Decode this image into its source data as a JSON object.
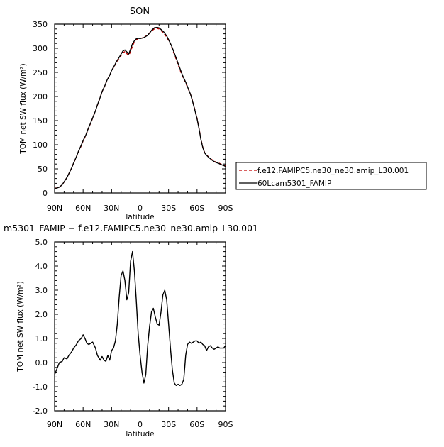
{
  "chart_data": [
    {
      "type": "line",
      "title": "SON",
      "xlabel": "latitude",
      "ylabel": "TOM net SW flux (W/m²)",
      "xlim": [
        90,
        -90
      ],
      "ylim": [
        0,
        350
      ],
      "xticks": [
        90,
        60,
        30,
        0,
        -30,
        -60,
        -90
      ],
      "xtick_labels": [
        "90N",
        "60N",
        "30N",
        "0",
        "30S",
        "60S",
        "90S"
      ],
      "yticks": [
        0,
        50,
        100,
        150,
        200,
        250,
        300,
        350
      ],
      "ytick_labels": [
        "0",
        "50",
        "100",
        "150",
        "200",
        "250",
        "300",
        "350"
      ],
      "legend_position": "right",
      "series": [
        {
          "name": "f.e12.FAMIPC5.ne30_ne30.amip_L30.001",
          "color": "#c00000",
          "dash": "dashed",
          "x": [
            90,
            88,
            85,
            82,
            80,
            77,
            75,
            72,
            70,
            67,
            65,
            62,
            60,
            57,
            55,
            52,
            50,
            47,
            45,
            42,
            40,
            37,
            35,
            32,
            30,
            27,
            25,
            22,
            20,
            18,
            16,
            14,
            12,
            10,
            8,
            6,
            4,
            2,
            0,
            -3,
            -5,
            -8,
            -10,
            -12,
            -15,
            -18,
            -20,
            -23,
            -25,
            -28,
            -30,
            -33,
            -35,
            -38,
            -40,
            -43,
            -45,
            -48,
            -50,
            -53,
            -55,
            -57,
            -60,
            -62,
            -64,
            -66,
            -68,
            -70,
            -72,
            -75,
            -78,
            -80,
            -83,
            -85,
            -88,
            -90
          ],
          "values": [
            10,
            10.5,
            12,
            17,
            23,
            32,
            40,
            52,
            62,
            75,
            85,
            98,
            108,
            120,
            131,
            145,
            155,
            170,
            182,
            198,
            210,
            223,
            233,
            244,
            253,
            263,
            270,
            278,
            285,
            291,
            293,
            289,
            285,
            293,
            305,
            313,
            318,
            319.5,
            320,
            322,
            324,
            327.5,
            332,
            336,
            340,
            341,
            340,
            335,
            331,
            323,
            316,
            303,
            293,
            277,
            266,
            250,
            240,
            228,
            219,
            205,
            193,
            178,
            155,
            135,
            112,
            95,
            84,
            79,
            75,
            70,
            66,
            64,
            62,
            60,
            58,
            56
          ]
        },
        {
          "name": "60Lcam5301_FAMIP",
          "color": "#000000",
          "dash": "solid",
          "x": [
            90,
            88,
            85,
            82,
            80,
            77,
            75,
            72,
            70,
            67,
            65,
            62,
            60,
            57,
            55,
            52,
            50,
            47,
            45,
            42,
            40,
            37,
            35,
            32,
            30,
            27,
            25,
            22,
            20,
            18,
            16,
            14,
            12,
            10,
            8,
            6,
            4,
            2,
            0,
            -3,
            -5,
            -8,
            -10,
            -12,
            -15,
            -18,
            -20,
            -23,
            -25,
            -28,
            -30,
            -33,
            -35,
            -38,
            -40,
            -43,
            -45,
            -48,
            -50,
            -53,
            -55,
            -57,
            -60,
            -62,
            -64,
            -66,
            -68,
            -70,
            -72,
            -75,
            -78,
            -80,
            -83,
            -85,
            -88,
            -90
          ],
          "values": [
            9.5,
            10,
            12,
            17,
            23.2,
            32.1,
            40.2,
            52.2,
            62.3,
            75.6,
            86.1,
            98.9,
            108.8,
            120.8,
            131.7,
            145.6,
            155.5,
            170.2,
            182.4,
            198.4,
            210.1,
            222.9,
            232.9,
            244.3,
            253.8,
            264,
            272,
            281,
            288,
            294.5,
            296.5,
            292.5,
            288,
            298,
            309.5,
            315.5,
            319.5,
            320.6,
            320.2,
            321.3,
            323.2,
            326.8,
            331.5,
            337,
            342.5,
            343.2,
            342.2,
            337.3,
            333.7,
            325.6,
            318,
            305.5,
            295.5,
            279.7,
            268.7,
            252.8,
            242.3,
            229.7,
            220,
            205,
            192.1,
            177,
            154.1,
            134.1,
            111.2,
            94.2,
            83.3,
            78.2,
            74.3,
            69.2,
            65.2,
            63.3,
            61.2,
            59,
            57,
            55
          ]
        }
      ]
    },
    {
      "type": "line",
      "title": "m5301_FAMIP − f.e12.FAMIPC5.ne30_ne30.amip_L30.001",
      "xlabel": "latitude",
      "ylabel": "TOM net SW flux (W/m²)",
      "xlim": [
        90,
        -90
      ],
      "ylim": [
        -2,
        5
      ],
      "xticks": [
        90,
        60,
        30,
        0,
        -30,
        -60,
        -90
      ],
      "xtick_labels": [
        "90N",
        "60N",
        "30N",
        "0",
        "30S",
        "60S",
        "90S"
      ],
      "yticks": [
        -2,
        -1,
        0,
        1,
        2,
        3,
        4,
        5
      ],
      "ytick_labels": [
        "-2.0",
        "-1.0",
        "0.0",
        "1.0",
        "2.0",
        "3.0",
        "4.0",
        "5.0"
      ],
      "series": [
        {
          "color": "#000000",
          "dash": "solid",
          "x": [
            90,
            88,
            85,
            82,
            80,
            77,
            75,
            72,
            70,
            67,
            65,
            62,
            60,
            58,
            56,
            54,
            52,
            50,
            47,
            45,
            42,
            40,
            38,
            36,
            34,
            32,
            30,
            28,
            26,
            24,
            22,
            20,
            18,
            16,
            14,
            12,
            10,
            8,
            6,
            4,
            2,
            0,
            -2,
            -4,
            -6,
            -8,
            -10,
            -12,
            -14,
            -16,
            -18,
            -20,
            -22,
            -24,
            -26,
            -28,
            -30,
            -32,
            -34,
            -36,
            -38,
            -40,
            -42,
            -44,
            -46,
            -48,
            -50,
            -52,
            -54,
            -56,
            -58,
            -60,
            -62,
            -64,
            -66,
            -68,
            -70,
            -72,
            -74,
            -76,
            -78,
            -80,
            -82,
            -84,
            -86,
            -88,
            -90
          ],
          "values": [
            -0.5,
            -0.3,
            0,
            0.05,
            0.2,
            0.15,
            0.3,
            0.45,
            0.6,
            0.75,
            0.9,
            1.0,
            1.15,
            1.0,
            0.8,
            0.75,
            0.8,
            0.85,
            0.6,
            0.3,
            0.1,
            0.25,
            0.1,
            0.05,
            0.3,
            0.1,
            0.5,
            0.6,
            0.9,
            1.6,
            2.7,
            3.6,
            3.8,
            3.4,
            2.6,
            2.9,
            4.2,
            4.6,
            3.8,
            2.6,
            1.2,
            0.3,
            -0.4,
            -0.85,
            -0.5,
            0.7,
            1.5,
            2.1,
            2.25,
            1.9,
            1.6,
            1.55,
            2.1,
            2.8,
            3.0,
            2.6,
            1.6,
            0.6,
            -0.3,
            -0.85,
            -0.95,
            -0.9,
            -0.95,
            -0.9,
            -0.7,
            0.3,
            0.75,
            0.85,
            0.8,
            0.85,
            0.9,
            0.9,
            0.8,
            0.85,
            0.75,
            0.7,
            0.5,
            0.65,
            0.7,
            0.6,
            0.55,
            0.6,
            0.65,
            0.6,
            0.6,
            0.6,
            0.7
          ]
        }
      ]
    }
  ]
}
